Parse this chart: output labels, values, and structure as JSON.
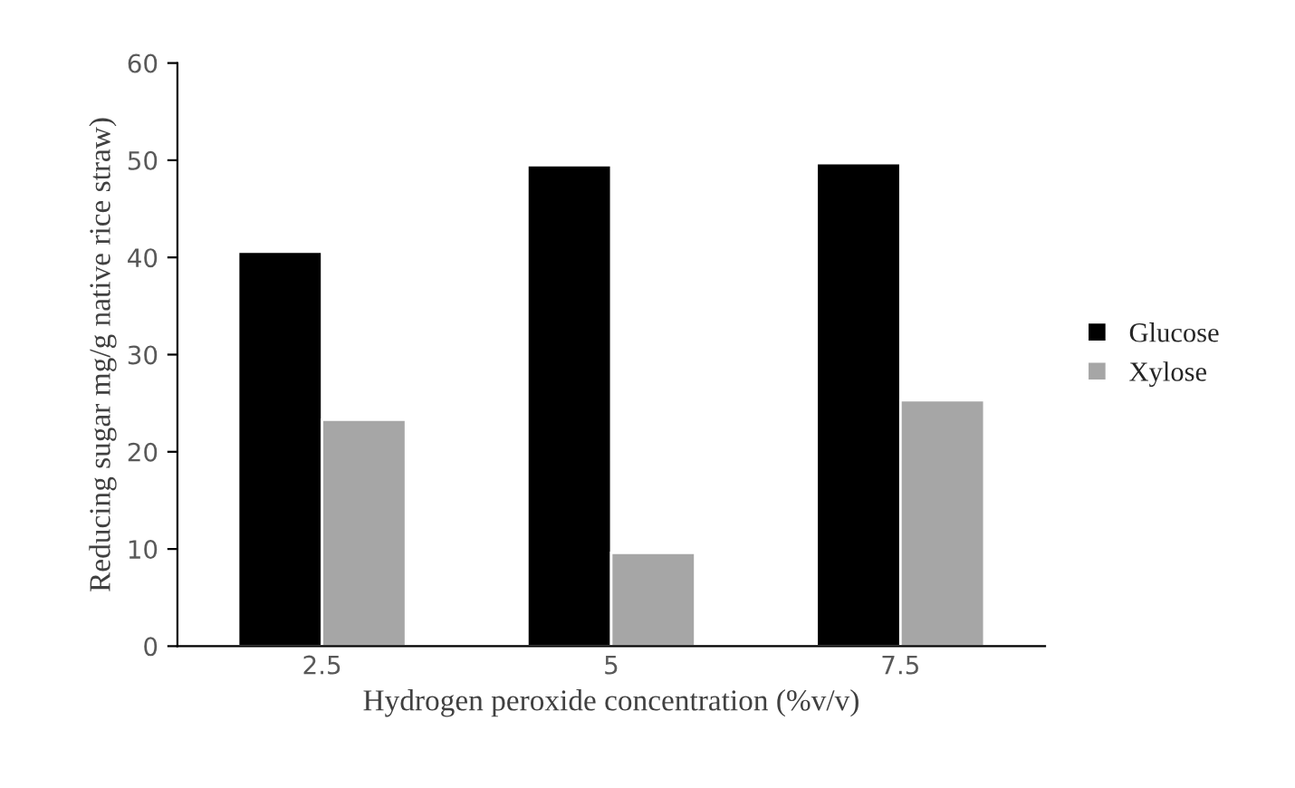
{
  "chart_data": {
    "type": "bar",
    "xlabel": "Hydrogen peroxide concentration (%v/v)",
    "ylabel": "Reducing sugar mg/g native rice straw)",
    "categories": [
      "2.5",
      "5",
      "7.5"
    ],
    "series": [
      {
        "name": "Glucose",
        "color": "#000000",
        "values": [
          40.6,
          49.5,
          49.7
        ]
      },
      {
        "name": "Xylose",
        "color": "#a6a6a6",
        "values": [
          23.3,
          9.6,
          25.3
        ]
      }
    ],
    "ylim": [
      0,
      60
    ],
    "yticks": [
      0,
      10,
      20,
      30,
      40,
      50,
      60
    ],
    "grid": false,
    "legend": "right"
  }
}
